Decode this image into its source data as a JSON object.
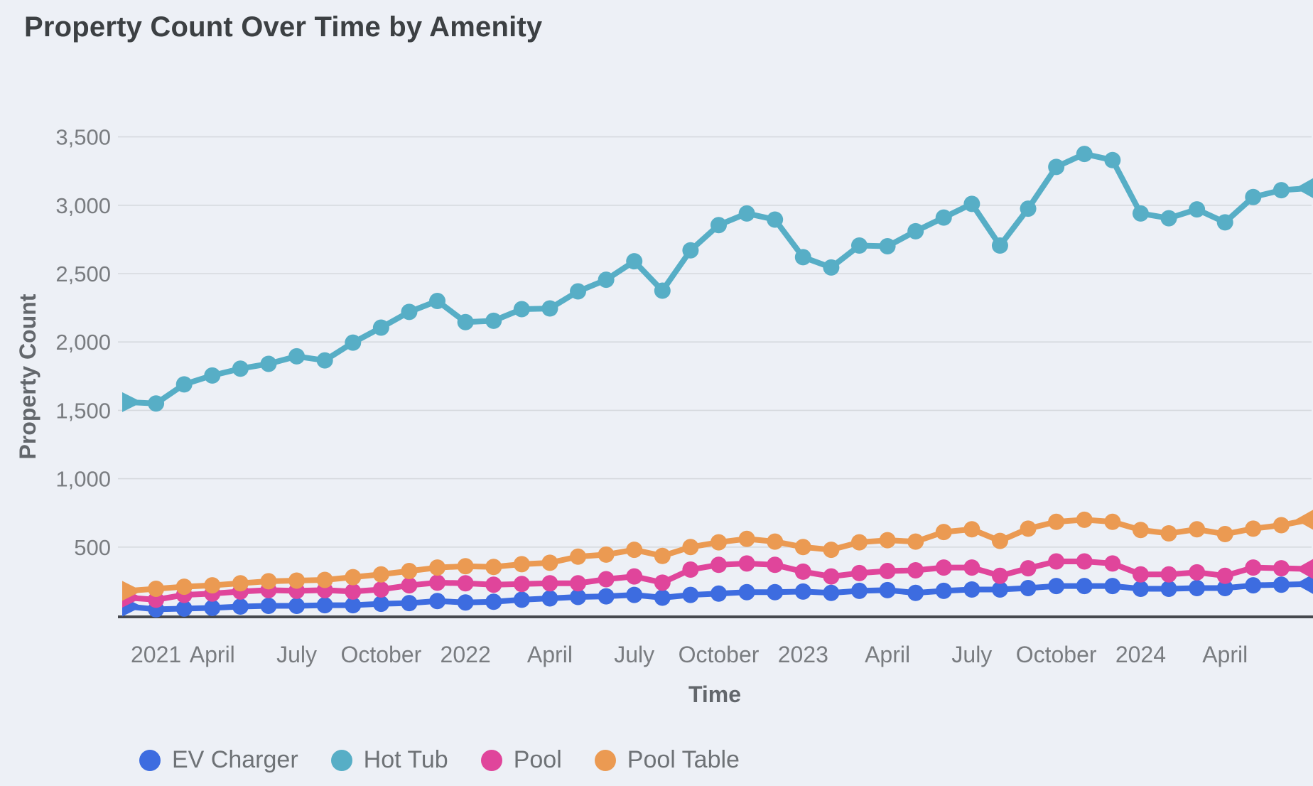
{
  "page": {
    "background": "#edf0f6"
  },
  "chart_data": {
    "type": "line",
    "title": "Property Count Over Time by Amenity",
    "xlabel": "Time",
    "ylabel": "Property Count",
    "ylim": [
      0,
      3500
    ],
    "grid": true,
    "legend_position": "bottom",
    "style": {
      "background": "#edf0f6",
      "title_color": "#3c4043",
      "tick_color": "#797c80",
      "label_color": "#63676c",
      "grid_color": "#d6d9de",
      "axis_color": "#46494e",
      "legend_text_color": "#6e7276"
    },
    "y_ticks": [
      {
        "value": 500,
        "label": "500"
      },
      {
        "value": 1000,
        "label": "1,000"
      },
      {
        "value": 1500,
        "label": "1,500"
      },
      {
        "value": 2000,
        "label": "2,000"
      },
      {
        "value": 2500,
        "label": "2,500"
      },
      {
        "value": 3000,
        "label": "3,000"
      },
      {
        "value": 3500,
        "label": "3,500"
      }
    ],
    "x_months": [
      "2021-01",
      "2021-02",
      "2021-03",
      "2021-04",
      "2021-05",
      "2021-06",
      "2021-07",
      "2021-08",
      "2021-09",
      "2021-10",
      "2021-11",
      "2021-12",
      "2022-01",
      "2022-02",
      "2022-03",
      "2022-04",
      "2022-05",
      "2022-06",
      "2022-07",
      "2022-08",
      "2022-09",
      "2022-10",
      "2022-11",
      "2022-12",
      "2023-01",
      "2023-02",
      "2023-03",
      "2023-04",
      "2023-05",
      "2023-06",
      "2023-07",
      "2023-08",
      "2023-09",
      "2023-10",
      "2023-11",
      "2023-12",
      "2024-01",
      "2024-02",
      "2024-03",
      "2024-04",
      "2024-05",
      "2024-06",
      "2024-07"
    ],
    "x_tick_marks": [
      {
        "month_index": 1,
        "label": "2021"
      },
      {
        "month_index": 3,
        "label": "April"
      },
      {
        "month_index": 6,
        "label": "July"
      },
      {
        "month_index": 9,
        "label": "October"
      },
      {
        "month_index": 12,
        "label": "2022"
      },
      {
        "month_index": 15,
        "label": "April"
      },
      {
        "month_index": 18,
        "label": "July"
      },
      {
        "month_index": 21,
        "label": "October"
      },
      {
        "month_index": 24,
        "label": "2023"
      },
      {
        "month_index": 27,
        "label": "April"
      },
      {
        "month_index": 30,
        "label": "July"
      },
      {
        "month_index": 33,
        "label": "October"
      },
      {
        "month_index": 36,
        "label": "2024"
      },
      {
        "month_index": 39,
        "label": "April"
      }
    ],
    "series": [
      {
        "name": "EV Charger",
        "color": "#3d6ce0",
        "values": [
          65,
          45,
          50,
          55,
          65,
          70,
          70,
          75,
          75,
          85,
          90,
          105,
          95,
          100,
          115,
          125,
          135,
          140,
          150,
          130,
          150,
          160,
          170,
          170,
          175,
          165,
          180,
          185,
          165,
          180,
          190,
          190,
          200,
          215,
          215,
          215,
          195,
          195,
          200,
          200,
          220,
          225,
          230
        ]
      },
      {
        "name": "Hot Tub",
        "color": "#57aec6",
        "values": [
          1560,
          1550,
          1690,
          1755,
          1805,
          1840,
          1895,
          1865,
          1995,
          2105,
          2220,
          2300,
          2145,
          2155,
          2240,
          2245,
          2370,
          2455,
          2590,
          2375,
          2670,
          2855,
          2940,
          2895,
          2620,
          2545,
          2705,
          2700,
          2810,
          2910,
          3010,
          2705,
          2975,
          3280,
          3375,
          3330,
          2940,
          2905,
          2970,
          2875,
          3060,
          3110,
          3125
        ]
      },
      {
        "name": "Pool",
        "color": "#e0459b",
        "values": [
          130,
          115,
          150,
          160,
          175,
          185,
          180,
          185,
          175,
          190,
          220,
          240,
          235,
          225,
          230,
          235,
          235,
          265,
          285,
          240,
          335,
          370,
          380,
          370,
          320,
          285,
          310,
          325,
          330,
          350,
          350,
          290,
          345,
          395,
          395,
          380,
          300,
          300,
          315,
          290,
          350,
          345,
          340
        ]
      },
      {
        "name": "Pool Table",
        "color": "#eb9a52",
        "values": [
          180,
          195,
          210,
          220,
          235,
          250,
          255,
          260,
          280,
          300,
          325,
          350,
          360,
          355,
          375,
          385,
          430,
          445,
          480,
          435,
          500,
          535,
          560,
          540,
          500,
          480,
          535,
          550,
          540,
          610,
          630,
          545,
          635,
          685,
          700,
          685,
          625,
          600,
          630,
          595,
          635,
          660,
          700
        ]
      }
    ]
  }
}
